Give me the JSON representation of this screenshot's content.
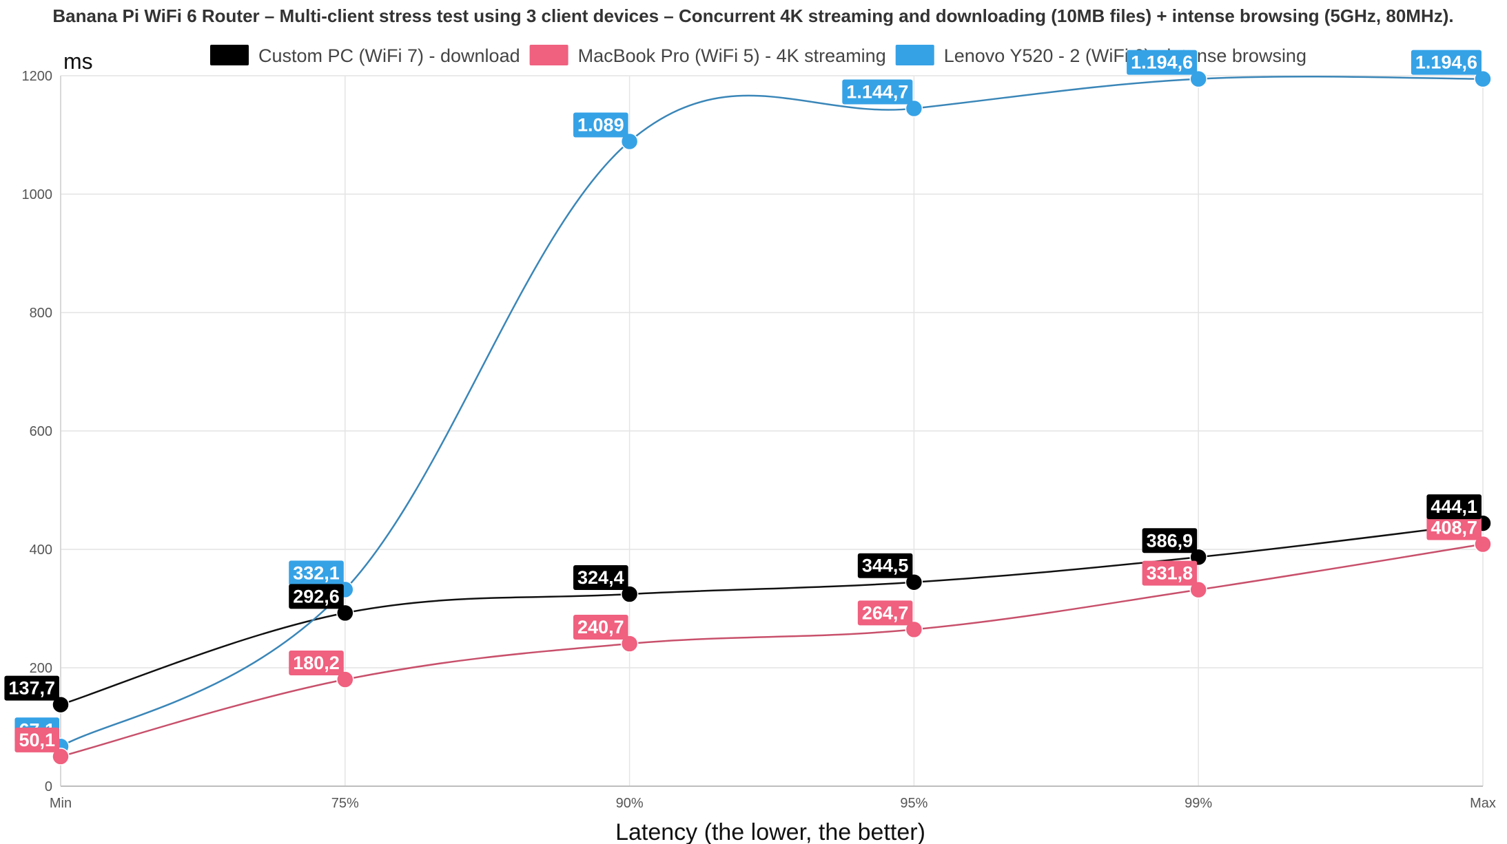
{
  "chart_data": {
    "type": "line",
    "title": "Banana Pi WiFi 6 Router – Multi-client stress test using 3 client devices – Concurrent 4K streaming and downloading (10MB files) + intense browsing (5GHz, 80MHz).",
    "ylabel": "ms",
    "xlabel": "Latency (the lower, the better)",
    "categories": [
      "Min",
      "75%",
      "90%",
      "95%",
      "99%",
      "Max"
    ],
    "ylim": [
      0,
      1200
    ],
    "yticks": [
      "0",
      "200",
      "400",
      "600",
      "800",
      "1000",
      "1200"
    ],
    "grid": true,
    "legend_position": "top",
    "series": [
      {
        "name": "Custom PC (WiFi 7) - download",
        "color": "#000000",
        "values": [
          137.7,
          292.6,
          324.4,
          344.5,
          386.9,
          444.1
        ],
        "labels": [
          "137,7",
          "292,6",
          "324,4",
          "344,5",
          "386,9",
          "444,1"
        ]
      },
      {
        "name": "MacBook Pro (WiFi 5) - 4K streaming",
        "color": "#f0607f",
        "values": [
          50.1,
          180.2,
          240.7,
          264.7,
          331.8,
          408.7
        ],
        "labels": [
          "50,1",
          "180,2",
          "240,7",
          "264,7",
          "331,8",
          "408,7"
        ]
      },
      {
        "name": "Lenovo Y520 - 2 (WiFi 6) - intense browsing",
        "color": "#36a2e6",
        "values": [
          67.1,
          332.1,
          1089,
          1144.7,
          1194.6,
          1194.6
        ],
        "labels": [
          "67,1",
          "332,1",
          "1.089",
          "1.144,7",
          "1.194,6",
          "1.194,6"
        ]
      }
    ]
  }
}
